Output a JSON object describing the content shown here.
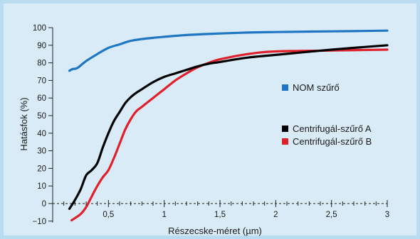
{
  "colors": {
    "background": "#d9ebf6",
    "frame": "#b9dcf0",
    "axis": "#222222"
  },
  "chart_data": {
    "type": "line",
    "xlabel": "Részecske-méret (µm)",
    "ylabel": "Hatásfok (%)",
    "xlim": [
      0,
      3
    ],
    "ylim": [
      -10,
      100
    ],
    "xticks": [
      0.5,
      1,
      1.5,
      2,
      2.5,
      3
    ],
    "xtick_labels": [
      "0,5",
      "1",
      "1,5",
      "2",
      "2,5",
      "3"
    ],
    "yticks": [
      -10,
      0,
      10,
      20,
      30,
      40,
      50,
      60,
      70,
      80,
      90,
      100
    ],
    "ytick_labels": [
      "−10",
      "0",
      "10",
      "20",
      "30",
      "40",
      "50",
      "60",
      "70",
      "80",
      "90",
      "100"
    ],
    "grid": false,
    "zero_line": "dashed",
    "legend_position": "right",
    "series": [
      {
        "name": "NOM szűrő",
        "color": "#1f77c4",
        "x": [
          0.15,
          0.18,
          0.22,
          0.3,
          0.4,
          0.5,
          0.6,
          0.7,
          0.8,
          0.9,
          1.0,
          1.2,
          1.5,
          1.75,
          2.0,
          2.5,
          3.0
        ],
        "y": [
          75.5,
          76.5,
          77,
          81,
          85,
          88.5,
          90.5,
          92.5,
          93.5,
          94.2,
          94.8,
          95.8,
          96.7,
          97.2,
          97.5,
          97.9,
          98.3
        ]
      },
      {
        "name": "Centrifugál-szűrő A",
        "color": "#000000",
        "x": [
          0.15,
          0.2,
          0.25,
          0.3,
          0.35,
          0.4,
          0.45,
          0.5,
          0.55,
          0.6,
          0.65,
          0.7,
          0.75,
          0.8,
          0.9,
          1.0,
          1.1,
          1.2,
          1.3,
          1.4,
          1.5,
          1.75,
          2.0,
          2.5,
          3.0
        ],
        "y": [
          -3,
          2,
          8,
          16,
          19,
          23,
          32,
          40,
          47,
          52,
          57,
          60.5,
          63,
          65,
          69,
          72,
          74,
          76,
          78,
          79.5,
          80.5,
          83,
          84.5,
          87.5,
          90
        ]
      },
      {
        "name": "Centrifugál-szűrő B",
        "color": "#e0202a",
        "x": [
          0.17,
          0.25,
          0.3,
          0.35,
          0.4,
          0.45,
          0.5,
          0.55,
          0.6,
          0.65,
          0.7,
          0.75,
          0.8,
          0.9,
          1.0,
          1.1,
          1.2,
          1.3,
          1.4,
          1.5,
          1.75,
          2.0,
          2.5,
          3.0
        ],
        "y": [
          -9.5,
          -6,
          -2,
          4,
          10,
          15,
          19,
          26,
          34,
          42,
          48,
          52.5,
          55,
          60,
          65,
          70,
          74,
          77.5,
          80,
          82,
          85,
          86.5,
          87,
          87.5
        ]
      }
    ]
  }
}
